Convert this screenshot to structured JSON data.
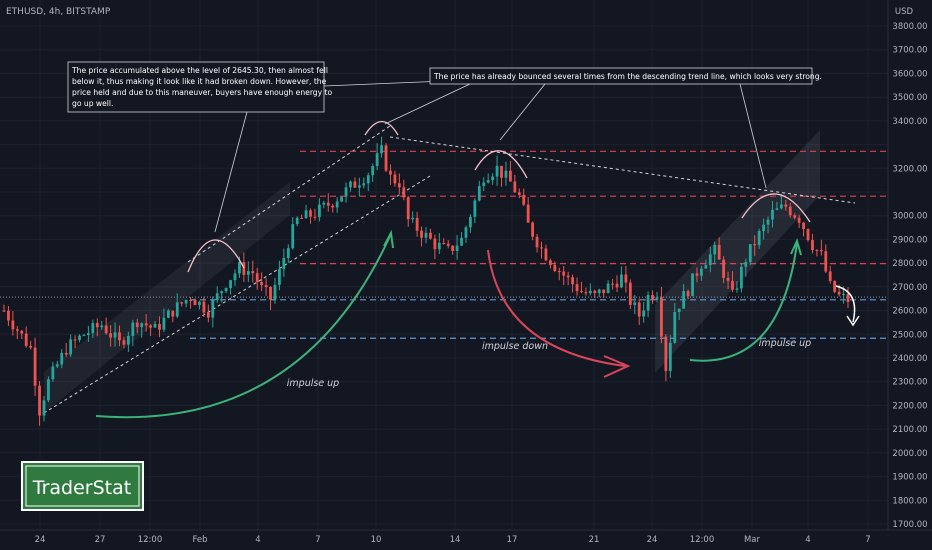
{
  "symbol_title": "ETHUSD, 4h, BITSTAMP",
  "currency": "USD",
  "logo_text": "TraderStat",
  "colors": {
    "background": "#131722",
    "up": "#26a69a",
    "down": "#ef5350",
    "level_red": "#e0414f",
    "level_blue": "#5b9bd5",
    "impulse_up": "#3ab37a",
    "impulse_down": "#d9455a",
    "text": "#b2b5be"
  },
  "chart_data": {
    "type": "candlestick",
    "price_axis": {
      "ylim": [
        1700,
        3800
      ],
      "ticks": [
        3800,
        3700,
        3600,
        3500,
        3400,
        3300,
        3200,
        3100,
        3000,
        2900,
        2800,
        2700,
        2600,
        2500,
        2400,
        2300,
        2200,
        2100,
        2000,
        1900,
        1800,
        1700
      ],
      "tick_labels": [
        "3800.00",
        "3700.00",
        "3600.00",
        "3500.00",
        "3400.00",
        "3300.00",
        "3200.00",
        "3100.00",
        "3000.00",
        "2900.00",
        "2800.00",
        "2700.00",
        "2600.00",
        "2500.00",
        "2400.00",
        "2300.00",
        "2200.00",
        "2100.00",
        "2000.00",
        "1900.00",
        "1800.00",
        "1700.00"
      ]
    },
    "time_axis": {
      "labels": [
        "24",
        "27",
        "12:00",
        "Feb",
        "4",
        "7",
        "10",
        "14",
        "17",
        "21",
        "24",
        "12:00",
        "Mar",
        "4",
        "7"
      ]
    },
    "price_path": [
      [
        0,
        2600
      ],
      [
        3,
        2520
      ],
      [
        6,
        2440
      ],
      [
        8,
        2180
      ],
      [
        10,
        2300
      ],
      [
        14,
        2440
      ],
      [
        18,
        2500
      ],
      [
        22,
        2540
      ],
      [
        26,
        2460
      ],
      [
        30,
        2560
      ],
      [
        34,
        2520
      ],
      [
        38,
        2600
      ],
      [
        42,
        2660
      ],
      [
        46,
        2600
      ],
      [
        50,
        2720
      ],
      [
        53,
        2780
      ],
      [
        56,
        2760
      ],
      [
        58,
        2690
      ],
      [
        60,
        2650
      ],
      [
        62,
        2760
      ],
      [
        64,
        2890
      ],
      [
        66,
        2980
      ],
      [
        70,
        3010
      ],
      [
        74,
        3060
      ],
      [
        78,
        3120
      ],
      [
        82,
        3180
      ],
      [
        85,
        3270
      ],
      [
        87,
        3160
      ],
      [
        89,
        3140
      ],
      [
        91,
        2980
      ],
      [
        94,
        2930
      ],
      [
        97,
        2880
      ],
      [
        100,
        2850
      ],
      [
        103,
        2900
      ],
      [
        106,
        3060
      ],
      [
        108,
        3170
      ],
      [
        111,
        3200
      ],
      [
        114,
        3140
      ],
      [
        116,
        3080
      ],
      [
        118,
        2960
      ],
      [
        121,
        2860
      ],
      [
        124,
        2790
      ],
      [
        127,
        2730
      ],
      [
        130,
        2680
      ],
      [
        133,
        2660
      ],
      [
        136,
        2700
      ],
      [
        139,
        2740
      ],
      [
        141,
        2640
      ],
      [
        143,
        2580
      ],
      [
        145,
        2660
      ],
      [
        147,
        2680
      ],
      [
        149,
        2360
      ],
      [
        151,
        2600
      ],
      [
        154,
        2690
      ],
      [
        157,
        2800
      ],
      [
        160,
        2850
      ],
      [
        162,
        2760
      ],
      [
        164,
        2660
      ],
      [
        167,
        2820
      ],
      [
        170,
        2920
      ],
      [
        173,
        3010
      ],
      [
        176,
        3040
      ],
      [
        179,
        2990
      ],
      [
        182,
        2880
      ],
      [
        184,
        2830
      ],
      [
        186,
        2700
      ],
      [
        188,
        2660
      ],
      [
        190,
        2645
      ]
    ],
    "levels": [
      {
        "value": 3271.6,
        "label": "3271.60",
        "style": "red-dashed"
      },
      {
        "value": 3082.35,
        "label": "3082.35",
        "style": "red-dashed"
      },
      {
        "value": 2797.9,
        "label": "2797.90",
        "style": "red-dashed"
      },
      {
        "value": 2656.81,
        "label": "2656.81",
        "style": "current-price"
      },
      {
        "value": 2645.3,
        "label": "2645.30",
        "style": "blue-dashed"
      },
      {
        "value": 2483.33,
        "label": "2483.33",
        "style": "blue-dashed"
      }
    ],
    "annotations": [
      {
        "id": "accumulation-note",
        "text": "The price accumulated above the level of 2645.30, then almost fell below it, thus making it look like it had broken down. However, the price held and due to this maneuver, buyers have enough energy to go up well."
      },
      {
        "id": "trendline-note",
        "text": "The price has already bounced several times from the descending trend line, which looks very strong."
      }
    ],
    "impulse_labels": [
      "impulse up",
      "impulse down",
      "impulse up"
    ]
  }
}
